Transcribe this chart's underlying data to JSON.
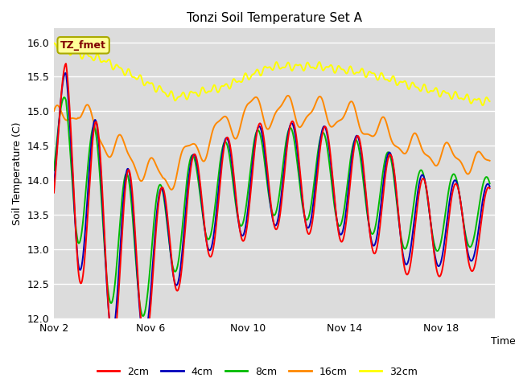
{
  "title": "Tonzi Soil Temperature Set A",
  "xlabel": "Time",
  "ylabel": "Soil Temperature (C)",
  "ylim": [
    12.0,
    16.2
  ],
  "xtick_positions": [
    2,
    6,
    10,
    14,
    18
  ],
  "xtick_labels": [
    "Nov 2",
    "Nov 6",
    "Nov 10",
    "Nov 14",
    "Nov 18"
  ],
  "ytick_positions": [
    12.0,
    12.5,
    13.0,
    13.5,
    14.0,
    14.5,
    15.0,
    15.5,
    16.0
  ],
  "colors": {
    "2cm": "#ff0000",
    "4cm": "#0000bb",
    "8cm": "#00bb00",
    "16cm": "#ff8800",
    "32cm": "#ffff00"
  },
  "legend_label": "TZ_fmet",
  "legend_bg": "#ffff99",
  "legend_border": "#aaaa00",
  "legend_text_color": "#800000",
  "plot_bg": "#dcdcdc",
  "line_width": 1.4
}
